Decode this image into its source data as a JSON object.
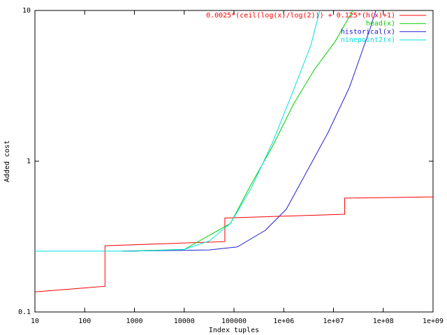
{
  "chart_data": {
    "type": "line",
    "xlabel": "Index tuples",
    "ylabel": "Added cost",
    "xscale": "log",
    "yscale": "log",
    "xlim": [
      10,
      1000000000
    ],
    "ylim": [
      0.1,
      10
    ],
    "xticks": [
      10,
      100,
      1000,
      10000,
      100000,
      {
        "value": 1000000,
        "label": "1e+06"
      },
      {
        "value": 10000000,
        "label": "1e+07"
      },
      {
        "value": 100000000,
        "label": "1e+08"
      },
      {
        "value": 1000000000,
        "label": "1e+09"
      }
    ],
    "yticks": [
      0.1,
      1,
      10
    ],
    "legend": "top-right",
    "series": [
      {
        "name": "0.0025*(ceil(log(x)/log(2))) + 0.125*(h(x)+1)",
        "color": "#ff0000",
        "x": [
          10,
          256,
          256,
          65536,
          65536,
          16777216,
          16777216,
          1000000000
        ],
        "values": [
          0.136,
          0.148,
          0.275,
          0.293,
          0.42,
          0.445,
          0.569,
          0.58
        ]
      },
      {
        "name": "head(x)",
        "color": "#00d000",
        "x": [
          560,
          10000,
          85000,
          220000,
          590000,
          1550000,
          4100000,
          10700000,
          24500000
        ],
        "values": [
          0.253,
          0.26,
          0.387,
          0.7,
          1.25,
          2.37,
          4.04,
          6.2,
          10
        ]
      },
      {
        "name": "historical(x)",
        "color": "#2020d0",
        "x": [
          560,
          32000,
          117000,
          427000,
          1120000,
          2950000,
          7760000,
          20900000,
          55000000,
          70800000
        ],
        "values": [
          0.253,
          0.258,
          0.27,
          0.348,
          0.48,
          0.86,
          1.55,
          3.09,
          7.66,
          10
        ]
      },
      {
        "name": "ninepoint2(x)",
        "color": "#00e0e0",
        "x": [
          10,
          1000,
          10000,
          32000,
          85000,
          220000,
          590000,
          1550000,
          3500000,
          5300000
        ],
        "values": [
          0.253,
          0.253,
          0.26,
          0.296,
          0.387,
          0.66,
          1.32,
          2.93,
          5.87,
          10
        ]
      }
    ]
  }
}
